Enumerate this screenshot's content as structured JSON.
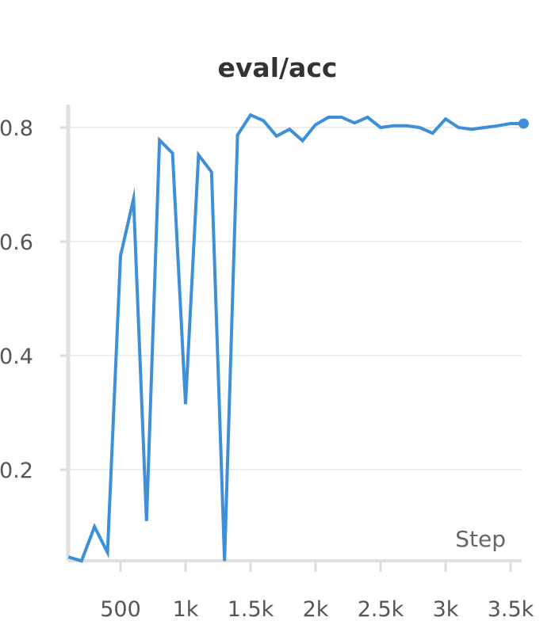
{
  "chart_data": {
    "type": "line",
    "title": "eval/acc",
    "xlabel": "Step",
    "ylabel": "",
    "xlim": [
      100,
      3600
    ],
    "ylim": [
      0.04,
      0.84
    ],
    "xticks": [
      {
        "value": 500,
        "label": "500"
      },
      {
        "value": 1000,
        "label": "1k"
      },
      {
        "value": 1500,
        "label": "1.5k"
      },
      {
        "value": 2000,
        "label": "2k"
      },
      {
        "value": 2500,
        "label": "2.5k"
      },
      {
        "value": 3000,
        "label": "3k"
      },
      {
        "value": 3500,
        "label": "3.5k"
      }
    ],
    "yticks": [
      {
        "value": 0.2,
        "label": "0.2"
      },
      {
        "value": 0.4,
        "label": "0.4"
      },
      {
        "value": 0.6,
        "label": "0.6"
      },
      {
        "value": 0.8,
        "label": "0.8"
      }
    ],
    "grid": true,
    "color": "#3d8fd8",
    "series": [
      {
        "name": "",
        "x": [
          100,
          200,
          300,
          400,
          500,
          600,
          700,
          800,
          900,
          1000,
          1100,
          1200,
          1300,
          1400,
          1500,
          1600,
          1700,
          1800,
          1900,
          2000,
          2100,
          2200,
          2300,
          2400,
          2500,
          2600,
          2700,
          2800,
          2900,
          3000,
          3100,
          3200,
          3300,
          3400,
          3500,
          3600
        ],
        "y": [
          0.047,
          0.04,
          0.1,
          0.055,
          0.575,
          0.675,
          0.11,
          0.778,
          0.755,
          0.315,
          0.752,
          0.722,
          0.04,
          0.787,
          0.822,
          0.812,
          0.785,
          0.797,
          0.777,
          0.805,
          0.818,
          0.818,
          0.808,
          0.818,
          0.8,
          0.803,
          0.803,
          0.8,
          0.79,
          0.815,
          0.8,
          0.797,
          0.8,
          0.803,
          0.807,
          0.807
        ]
      }
    ]
  }
}
